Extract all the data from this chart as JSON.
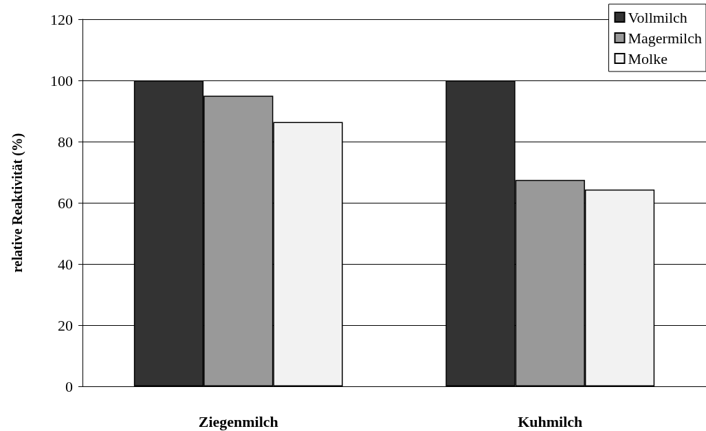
{
  "chart_data": {
    "type": "bar",
    "ylabel": "relative Reaktivität (%)",
    "categories": [
      "Ziegenmilch",
      "Kuhmilch"
    ],
    "series": [
      {
        "name": "Vollmilch",
        "color": "#333333",
        "values": [
          100,
          100
        ]
      },
      {
        "name": "Magermilch",
        "color": "#999999",
        "values": [
          95,
          67.5
        ]
      },
      {
        "name": "Molke",
        "color": "#f2f2f2",
        "values": [
          86.4,
          64.3
        ]
      }
    ],
    "ylim": [
      0,
      120
    ],
    "yticks": [
      0,
      20,
      40,
      60,
      80,
      100,
      120
    ],
    "grid": "y",
    "legend": "top right"
  }
}
